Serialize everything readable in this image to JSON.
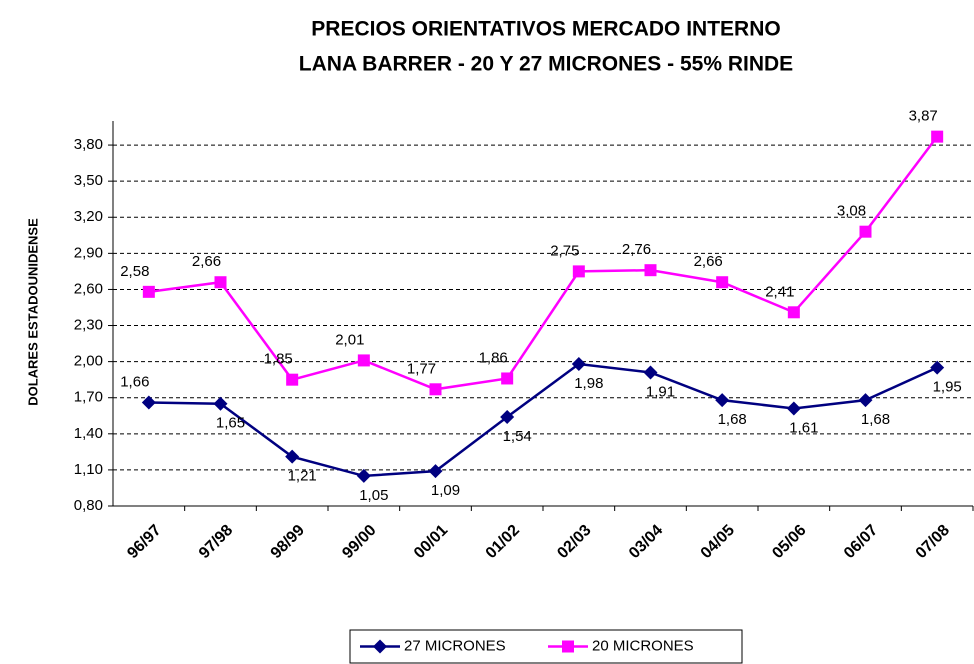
{
  "chart_data": {
    "type": "line",
    "title": "PRECIOS ORIENTATIVOS MERCADO INTERNO",
    "subtitle": "LANA BARRER - 20 Y 27 MICRONES - 55% RINDE",
    "ylabel": "DOLARES ESTADOUNIDENSE",
    "categories": [
      "96/97",
      "97/98",
      "98/99",
      "99/00",
      "00/01",
      "01/02",
      "02/03",
      "03/04",
      "04/05",
      "05/06",
      "06/07",
      "07/08"
    ],
    "series": [
      {
        "name": "27 MICRONES",
        "color": "#000080",
        "marker": "diamond",
        "values": [
          1.66,
          1.65,
          1.21,
          1.05,
          1.09,
          1.54,
          1.98,
          1.91,
          1.68,
          1.61,
          1.68,
          1.95
        ],
        "value_labels": [
          "1,66",
          "1,65",
          "1,21",
          "1,05",
          "1,09",
          "1,54",
          "1,98",
          "1,91",
          "1,68",
          "1,61",
          "1,68",
          "1,95"
        ]
      },
      {
        "name": "20 MICRONES",
        "color": "#ff00ff",
        "marker": "square",
        "values": [
          2.58,
          2.66,
          1.85,
          2.01,
          1.77,
          1.86,
          2.75,
          2.76,
          2.66,
          2.41,
          3.08,
          3.87
        ],
        "value_labels": [
          "2,58",
          "2,66",
          "1,85",
          "2,01",
          "1,77",
          "1,86",
          "2,75",
          "2,76",
          "2,66",
          "2,41",
          "3,08",
          "3,87"
        ]
      }
    ],
    "ylim": [
      0.8,
      4.0
    ],
    "yticks": [
      {
        "value": 0.8,
        "label": "0,80"
      },
      {
        "value": 1.1,
        "label": "1,10"
      },
      {
        "value": 1.4,
        "label": "1,40"
      },
      {
        "value": 1.7,
        "label": "1,70"
      },
      {
        "value": 2.0,
        "label": "2,00"
      },
      {
        "value": 2.3,
        "label": "2,30"
      },
      {
        "value": 2.6,
        "label": "2,60"
      },
      {
        "value": 2.9,
        "label": "2,90"
      },
      {
        "value": 3.2,
        "label": "3,20"
      },
      {
        "value": 3.5,
        "label": "3,50"
      },
      {
        "value": 3.8,
        "label": "3,80"
      }
    ],
    "grid": true
  }
}
